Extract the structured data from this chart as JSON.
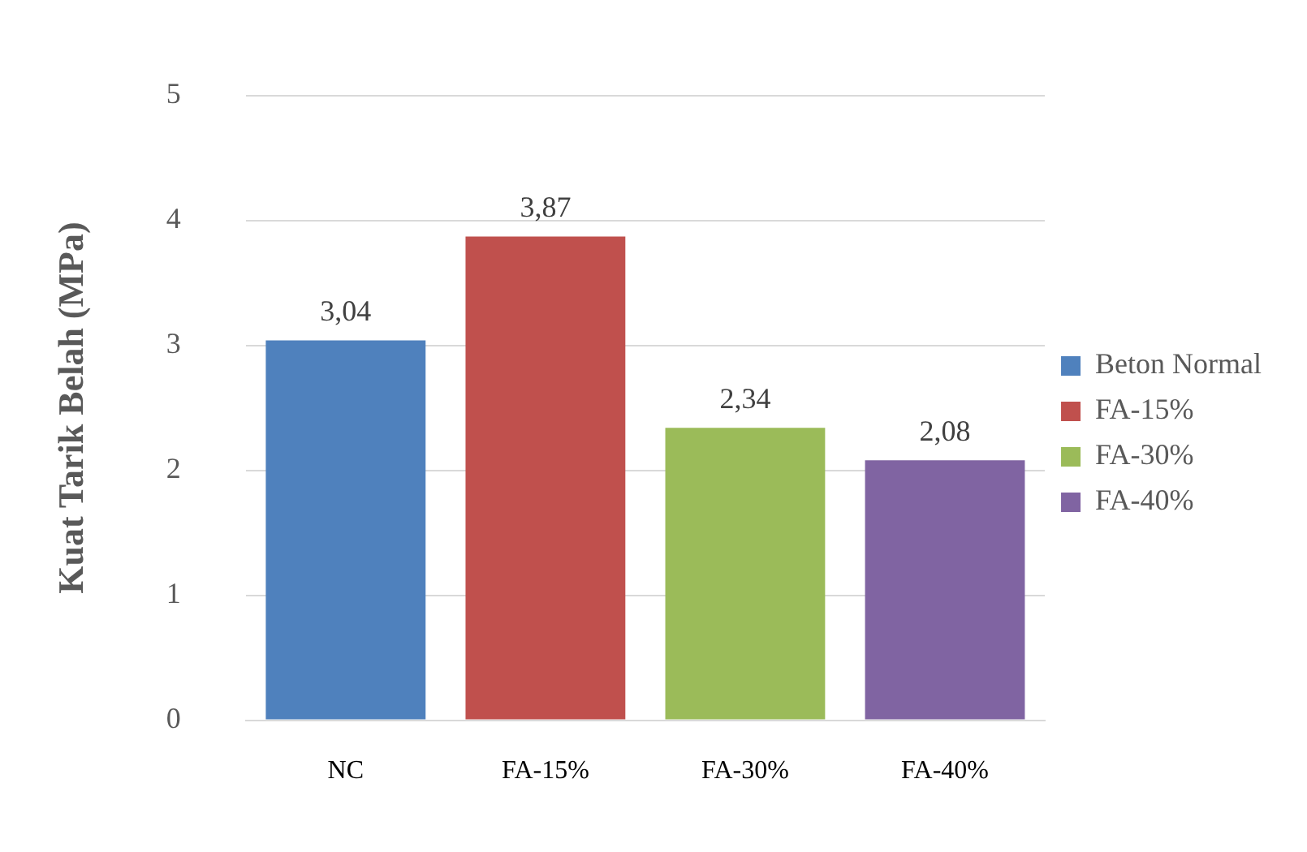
{
  "chart_data": {
    "type": "bar",
    "ylabel": "Kuat Tarik Belah (MPa)",
    "categories": [
      "NC",
      "FA-15%",
      "FA-30%",
      "FA-40%"
    ],
    "series": [
      {
        "name": "Beton Normal",
        "color": "#4f81bd",
        "values": [
          3.04,
          null,
          null,
          null
        ],
        "value_labels": [
          "3,04",
          null,
          null,
          null
        ]
      },
      {
        "name": "FA-15%",
        "color": "#c0504d",
        "values": [
          null,
          3.87,
          null,
          null
        ],
        "value_labels": [
          null,
          "3,87",
          null,
          null
        ]
      },
      {
        "name": "FA-30%",
        "color": "#9bbb59",
        "values": [
          null,
          null,
          2.34,
          null
        ],
        "value_labels": [
          null,
          null,
          "2,34",
          null
        ]
      },
      {
        "name": "FA-40%",
        "color": "#8064a2",
        "values": [
          null,
          null,
          null,
          2.08
        ],
        "value_labels": [
          null,
          null,
          null,
          "2,08"
        ]
      }
    ],
    "ylim": [
      0,
      5
    ],
    "yticks": [
      0,
      1,
      2,
      3,
      4,
      5
    ],
    "grid": "y",
    "legend": "right"
  }
}
